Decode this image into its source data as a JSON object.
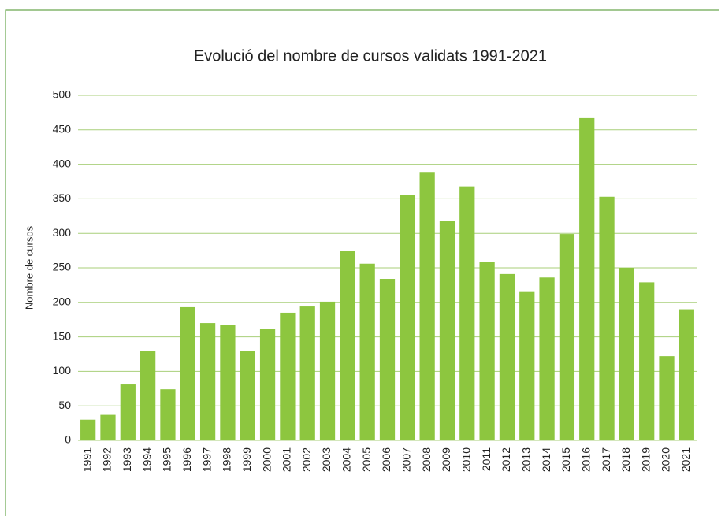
{
  "chart_data": {
    "type": "bar",
    "title": "Evolució del nombre de cursos validats 1991-2021",
    "y_label": "Nombre de cursos",
    "categories": [
      "1991",
      "1992",
      "1993",
      "1994",
      "1995",
      "1996",
      "1997",
      "1998",
      "1999",
      "2000",
      "2001",
      "2002",
      "2003",
      "2004",
      "2005",
      "2006",
      "2007",
      "2008",
      "2009",
      "2010",
      "2011",
      "2012",
      "2013",
      "2014",
      "2015",
      "2016",
      "2017",
      "2018",
      "2019",
      "2020",
      "2021"
    ],
    "values": [
      30,
      37,
      81,
      129,
      74,
      193,
      170,
      167,
      130,
      162,
      185,
      194,
      201,
      274,
      256,
      234,
      356,
      389,
      318,
      368,
      259,
      241,
      215,
      236,
      299,
      467,
      353,
      250,
      229,
      122,
      190
    ],
    "color": "#8dc63f",
    "ylim": [
      0,
      500
    ],
    "yticks": [
      0,
      50,
      100,
      150,
      200,
      250,
      300,
      350,
      400,
      450,
      500
    ],
    "grid": true
  }
}
